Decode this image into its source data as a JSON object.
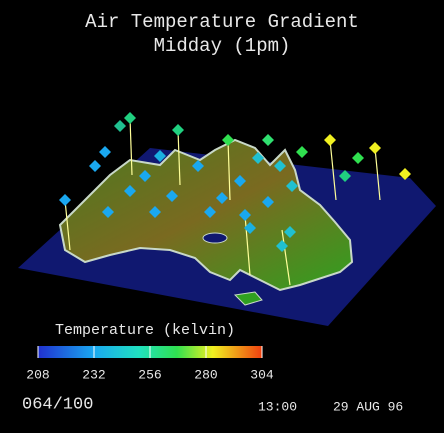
{
  "title": [
    "Air Temperature Gradient",
    "Midday (1pm)"
  ],
  "colorbar": {
    "label": "Temperature (kelvin)",
    "ticks": [
      208,
      232,
      256,
      280,
      304
    ]
  },
  "frame": "064/100",
  "time": "13:00",
  "date": "29 AUG 96"
}
